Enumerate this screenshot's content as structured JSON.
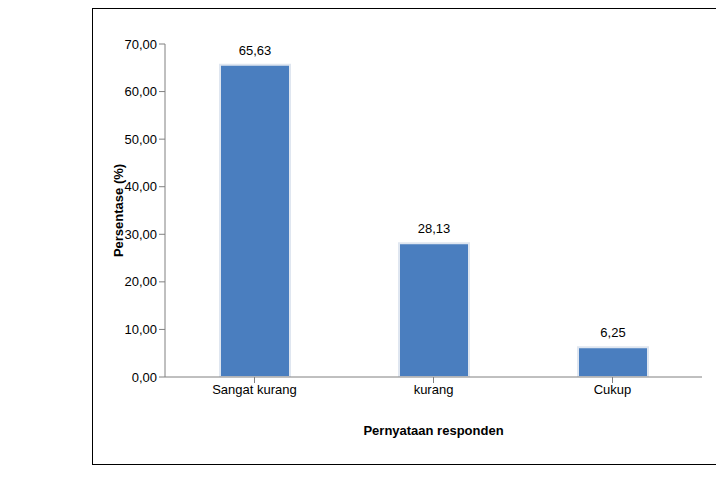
{
  "chart_data": {
    "type": "bar",
    "x_label": "Pernyataan responden",
    "y_label": "Persentase (%)",
    "categories": [
      "Sangat kurang",
      "kurang",
      "Cukup"
    ],
    "values": [
      65.63,
      28.13,
      6.25
    ],
    "value_labels": [
      "65,63",
      "28,13",
      "6,25"
    ],
    "data_labels": true,
    "color": "#4a7ebf",
    "ylim": [
      0,
      70
    ],
    "yticks": [
      {
        "value": 0,
        "label": "0,00"
      },
      {
        "value": 10,
        "label": "10,00"
      },
      {
        "value": 20,
        "label": "20,00"
      },
      {
        "value": 30,
        "label": "30,00"
      },
      {
        "value": 40,
        "label": "40,00"
      },
      {
        "value": 50,
        "label": "50,00"
      },
      {
        "value": 60,
        "label": "60,00"
      },
      {
        "value": 70,
        "label": "70,00"
      }
    ],
    "grid": false
  }
}
